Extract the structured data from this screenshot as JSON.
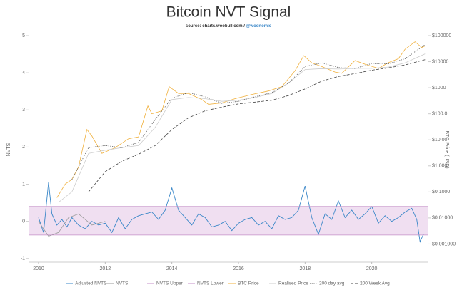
{
  "chart_data": {
    "type": "line",
    "title": "Bitcoin NVT Signal",
    "source": "source: charts.woobull.com / ",
    "author": "@woonomic",
    "ylabel": "NVTS",
    "y2label": "BTC Price (USD)",
    "xlim": [
      2009.7,
      2021.7
    ],
    "xticks": [
      2010,
      2012,
      2014,
      2016,
      2018,
      2020
    ],
    "ylim": [
      -1.1,
      5
    ],
    "yticks": [
      -1,
      0,
      1,
      2,
      3,
      4,
      5
    ],
    "y2lim": [
      0.0002,
      100000
    ],
    "y2scale": "log",
    "y2ticks": [
      {
        "value": 0.001,
        "label": "$0.001000"
      },
      {
        "value": 0.01,
        "label": "$0.01000"
      },
      {
        "value": 0.1,
        "label": "$0.1000"
      },
      {
        "value": 1,
        "label": "$1.000"
      },
      {
        "value": 10,
        "label": "$10.00"
      },
      {
        "value": 100,
        "label": "$100.0"
      },
      {
        "value": 1000,
        "label": "$1000"
      },
      {
        "value": 10000,
        "label": "$10000"
      },
      {
        "value": 100000,
        "label": "$100000"
      }
    ],
    "legend": "bottom",
    "series": [
      {
        "name": "Adjusted NVTS",
        "color": "#3a87c8",
        "x": [
          2010.0,
          2010.15,
          2010.3,
          2010.4,
          2010.55,
          2010.7,
          2010.85,
          2011.0,
          2011.2,
          2011.4,
          2011.6,
          2011.8,
          2012.0,
          2012.2,
          2012.4,
          2012.6,
          2012.8,
          2013.0,
          2013.2,
          2013.4,
          2013.6,
          2013.8,
          2014.0,
          2014.2,
          2014.4,
          2014.6,
          2014.8,
          2015.0,
          2015.2,
          2015.4,
          2015.6,
          2015.8,
          2016.0,
          2016.2,
          2016.4,
          2016.6,
          2016.8,
          2017.0,
          2017.2,
          2017.4,
          2017.6,
          2017.8,
          2018.0,
          2018.2,
          2018.4,
          2018.6,
          2018.8,
          2019.0,
          2019.2,
          2019.4,
          2019.6,
          2019.8,
          2020.0,
          2020.2,
          2020.4,
          2020.6,
          2020.8,
          2021.0,
          2021.2,
          2021.35,
          2021.45,
          2021.55
        ],
        "values": [
          0.1,
          -0.3,
          1.05,
          0.2,
          -0.1,
          0.05,
          -0.15,
          0.1,
          -0.1,
          -0.2,
          0.0,
          -0.1,
          -0.05,
          -0.3,
          0.1,
          -0.2,
          0.05,
          0.15,
          0.2,
          0.25,
          0.05,
          0.3,
          0.9,
          0.3,
          0.1,
          -0.1,
          0.2,
          0.1,
          -0.15,
          -0.1,
          0.0,
          -0.25,
          -0.05,
          0.05,
          0.1,
          -0.1,
          0.0,
          -0.2,
          0.15,
          0.05,
          0.1,
          0.3,
          0.95,
          0.1,
          -0.35,
          0.2,
          0.05,
          0.55,
          0.1,
          0.3,
          0.05,
          0.2,
          0.4,
          -0.05,
          0.15,
          0.0,
          0.1,
          0.25,
          0.35,
          0.05,
          -0.55,
          -0.35
        ]
      },
      {
        "name": "NVTS",
        "color": "#999999",
        "x": [
          2010.0,
          2010.3,
          2010.6,
          2010.9,
          2011.2,
          2011.6,
          2012.0
        ],
        "values": [
          0.0,
          -0.4,
          -0.3,
          0.1,
          0.2,
          -0.1,
          0.0
        ]
      },
      {
        "name": "NVTS Upper",
        "color": "#c48fc8",
        "x": [
          2009.7,
          2021.7
        ],
        "values": [
          0.4,
          0.4
        ]
      },
      {
        "name": "NVTS Lower",
        "color": "#c48fc8",
        "x": [
          2009.7,
          2021.7
        ],
        "values": [
          -0.37,
          -0.37
        ]
      },
      {
        "name": "BTC Price",
        "color": "#f0b03c",
        "axis": "y2",
        "x": [
          2010.55,
          2010.8,
          2011.0,
          2011.2,
          2011.45,
          2011.6,
          2011.9,
          2012.3,
          2012.7,
          2013.0,
          2013.28,
          2013.4,
          2013.7,
          2013.92,
          2014.2,
          2014.5,
          2014.9,
          2015.1,
          2015.5,
          2015.9,
          2016.4,
          2016.9,
          2017.3,
          2017.7,
          2017.96,
          2018.2,
          2018.5,
          2018.9,
          2019.1,
          2019.5,
          2019.8,
          2020.2,
          2020.5,
          2020.8,
          2021.0,
          2021.3,
          2021.5,
          2021.6
        ],
        "values": [
          0.06,
          0.2,
          0.3,
          0.9,
          25,
          14,
          3,
          5,
          11,
          13,
          200,
          100,
          130,
          1100,
          600,
          600,
          350,
          230,
          260,
          380,
          550,
          750,
          1100,
          4500,
          17000,
          9000,
          6500,
          4000,
          3600,
          11000,
          8000,
          5500,
          9200,
          13000,
          30000,
          58000,
          35000,
          40000
        ]
      },
      {
        "name": "Realised Price",
        "color": "#cccccc",
        "axis": "y2",
        "x": [
          2010.6,
          2011.0,
          2011.5,
          2012.0,
          2012.5,
          2013.0,
          2013.5,
          2014.0,
          2014.5,
          2015.0,
          2015.5,
          2016.0,
          2016.5,
          2017.0,
          2017.5,
          2018.0,
          2018.5,
          2019.0,
          2019.5,
          2020.0,
          2020.5,
          2021.0,
          2021.6
        ],
        "values": [
          0.04,
          0.1,
          3,
          4,
          5,
          6,
          30,
          350,
          420,
          380,
          300,
          330,
          420,
          600,
          1500,
          5000,
          5400,
          5200,
          5500,
          5600,
          6200,
          9000,
          20000
        ]
      },
      {
        "name": "200 day avg",
        "color": "#555555",
        "axis": "y2",
        "dash": "dotted",
        "x": [
          2011.0,
          2011.5,
          2012.0,
          2012.5,
          2013.0,
          2013.5,
          2014.0,
          2014.5,
          2015.0,
          2015.5,
          2016.0,
          2016.5,
          2017.0,
          2017.5,
          2018.0,
          2018.5,
          2019.0,
          2019.5,
          2020.0,
          2020.5,
          2021.0,
          2021.6
        ],
        "values": [
          0.3,
          5,
          6,
          5,
          8,
          60,
          400,
          650,
          450,
          250,
          300,
          450,
          650,
          1500,
          6500,
          9000,
          6000,
          5500,
          8500,
          8200,
          13000,
          45000
        ]
      },
      {
        "name": "200 Week Avg",
        "color": "#444444",
        "axis": "y2",
        "dash": "dashed",
        "x": [
          2011.5,
          2012.0,
          2012.5,
          2013.0,
          2013.5,
          2014.0,
          2014.5,
          2015.0,
          2015.5,
          2016.0,
          2016.5,
          2017.0,
          2017.5,
          2018.0,
          2018.5,
          2019.0,
          2019.5,
          2020.0,
          2020.5,
          2021.0,
          2021.6
        ],
        "values": [
          0.1,
          0.6,
          1.5,
          2.8,
          6,
          25,
          70,
          130,
          180,
          240,
          280,
          330,
          500,
          900,
          1800,
          2700,
          3500,
          4700,
          5800,
          7500,
          12000
        ]
      }
    ]
  }
}
